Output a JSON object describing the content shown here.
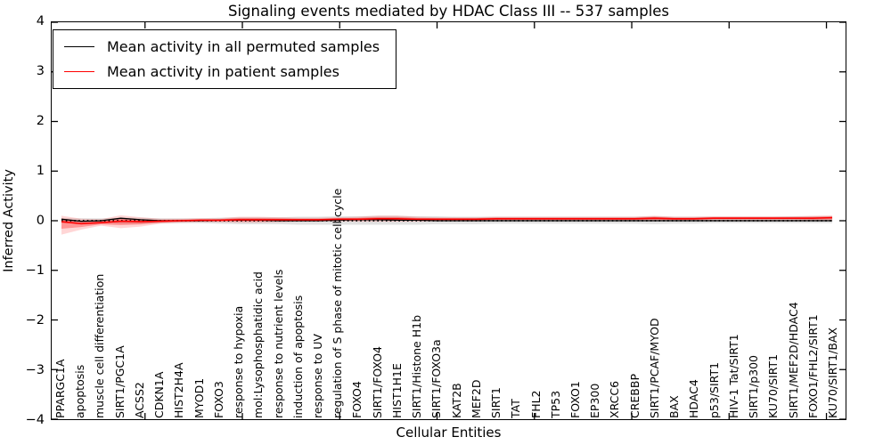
{
  "figure": {
    "title": "Signaling events mediated by HDAC Class III -- 537 samples",
    "xlabel": "Cellular Entities",
    "ylabel": "Inferred Activity",
    "legend": {
      "entries": [
        {
          "label": "Mean activity in all permuted samples",
          "color": "#000000"
        },
        {
          "label": "Mean activity in patient samples",
          "color": "#ff0000"
        }
      ]
    },
    "colors": {
      "permuted_line": "#000000",
      "patient_line": "#ff0000",
      "patient_band": "rgba(255,0,0,0.30)",
      "patient_band_outer": "rgba(255,0,0,0.16)",
      "permuted_band": "rgba(120,120,120,0.22)",
      "zero_line": "#000000",
      "spine": "#000000"
    }
  },
  "chart_data": {
    "type": "line",
    "title": "Signaling events mediated by HDAC Class III -- 537 samples",
    "xlabel": "Cellular Entities",
    "ylabel": "Inferred Activity",
    "ylim": [
      -4,
      4
    ],
    "yticks": [
      "4",
      "3",
      "2",
      "1",
      "0",
      "−1",
      "−2",
      "−3",
      "−4"
    ],
    "ytick_values": [
      4,
      3,
      2,
      1,
      0,
      -1,
      -2,
      -3,
      -4
    ],
    "grid": false,
    "legend_position": "upper left",
    "zero_reference_line": 0,
    "categories": [
      "PPARGC1A",
      "apoptosis",
      "muscle cell differentiation",
      "SIRT1/PGC1A",
      "ACSS2",
      "CDKN1A",
      "HIST2H4A",
      "MYOD1",
      "FOXO3",
      "response to hypoxia",
      "mol:Lysophosphatidic acid",
      "response to nutrient levels",
      "induction of apoptosis",
      "response to UV",
      "regulation of S phase of mitotic cell cycle",
      "FOXO4",
      "SIRT1/FOXO4",
      "HIST1H1E",
      "SIRT1/Histone H1b",
      "SIRT1/FOXO3a",
      "KAT2B",
      "MEF2D",
      "SIRT1",
      "TAT",
      "FHL2",
      "TP53",
      "FOXO1",
      "EP300",
      "XRCC6",
      "CREBBP",
      "SIRT1/PCAF/MYOD",
      "BAX",
      "HDAC4",
      "p53/SIRT1",
      "HIV-1 Tat/SIRT1",
      "SIRT1/p300",
      "KU70/SIRT1",
      "SIRT1/MEF2D/HDAC4",
      "FOXO1/FHL2/SIRT1",
      "KU70/SIRT1/BAX"
    ],
    "series": [
      {
        "name": "Mean activity in all permuted samples",
        "color": "#000000",
        "values": [
          0.03,
          -0.01,
          0.0,
          0.05,
          0.02,
          0.0,
          0.0,
          0.0,
          0.01,
          0.01,
          0.01,
          0.0,
          0.0,
          0.0,
          0.01,
          0.02,
          0.02,
          0.01,
          0.01,
          0.0,
          0.0,
          0.0,
          0.0,
          0.0,
          0.0,
          0.0,
          0.0,
          0.0,
          0.0,
          0.0,
          0.0,
          0.0,
          0.0,
          0.0,
          0.0,
          0.0,
          0.0,
          0.0,
          0.0,
          0.0
        ]
      },
      {
        "name": "Mean activity in patient samples",
        "color": "#ff0000",
        "values": [
          -0.02,
          -0.06,
          -0.04,
          -0.01,
          -0.02,
          -0.01,
          0.0,
          0.01,
          0.01,
          0.02,
          0.02,
          0.02,
          0.02,
          0.02,
          0.03,
          0.03,
          0.04,
          0.04,
          0.03,
          0.03,
          0.03,
          0.03,
          0.04,
          0.04,
          0.04,
          0.04,
          0.04,
          0.04,
          0.04,
          0.04,
          0.05,
          0.04,
          0.04,
          0.05,
          0.05,
          0.05,
          0.05,
          0.05,
          0.05,
          0.06
        ]
      }
    ],
    "bands": [
      {
        "name": "permuted samples spread",
        "color": "rgba(120,120,120,0.22)",
        "upper": [
          0.05,
          0.05,
          0.05,
          0.06,
          0.06,
          0.05,
          0.05,
          0.05,
          0.06,
          0.07,
          0.07,
          0.07,
          0.08,
          0.08,
          0.09,
          0.09,
          0.1,
          0.1,
          0.09,
          0.09,
          0.08,
          0.08,
          0.08,
          0.08,
          0.08,
          0.08,
          0.08,
          0.08,
          0.08,
          0.08,
          0.09,
          0.08,
          0.08,
          0.08,
          0.08,
          0.08,
          0.08,
          0.09,
          0.09,
          0.09
        ],
        "lower": [
          -0.05,
          -0.05,
          -0.05,
          -0.06,
          -0.06,
          -0.05,
          -0.05,
          -0.05,
          -0.06,
          -0.07,
          -0.07,
          -0.07,
          -0.08,
          -0.08,
          -0.08,
          -0.08,
          -0.08,
          -0.08,
          -0.08,
          -0.07,
          -0.07,
          -0.07,
          -0.06,
          -0.06,
          -0.06,
          -0.06,
          -0.06,
          -0.06,
          -0.06,
          -0.06,
          -0.07,
          -0.06,
          -0.06,
          -0.05,
          -0.05,
          -0.05,
          -0.05,
          -0.05,
          -0.05,
          -0.05
        ]
      },
      {
        "name": "patient samples spread",
        "color": "rgba(255,0,0,0.30)",
        "upper": [
          0.1,
          0.04,
          0.03,
          0.11,
          0.07,
          0.04,
          0.04,
          0.05,
          0.05,
          0.08,
          0.08,
          0.07,
          0.06,
          0.06,
          0.07,
          0.08,
          0.1,
          0.1,
          0.08,
          0.07,
          0.07,
          0.07,
          0.08,
          0.08,
          0.08,
          0.08,
          0.08,
          0.08,
          0.08,
          0.08,
          0.1,
          0.08,
          0.08,
          0.09,
          0.09,
          0.09,
          0.09,
          0.09,
          0.1,
          0.11
        ],
        "lower": [
          -0.28,
          -0.18,
          -0.1,
          -0.15,
          -0.12,
          -0.06,
          -0.04,
          -0.03,
          -0.03,
          -0.04,
          -0.04,
          -0.03,
          -0.02,
          -0.02,
          -0.01,
          -0.02,
          -0.02,
          -0.02,
          -0.02,
          -0.01,
          -0.01,
          -0.01,
          0.0,
          0.0,
          0.0,
          0.0,
          0.0,
          0.0,
          0.0,
          0.0,
          -0.01,
          0.0,
          0.0,
          0.01,
          0.01,
          0.01,
          0.01,
          0.01,
          0.0,
          0.0
        ]
      }
    ]
  }
}
